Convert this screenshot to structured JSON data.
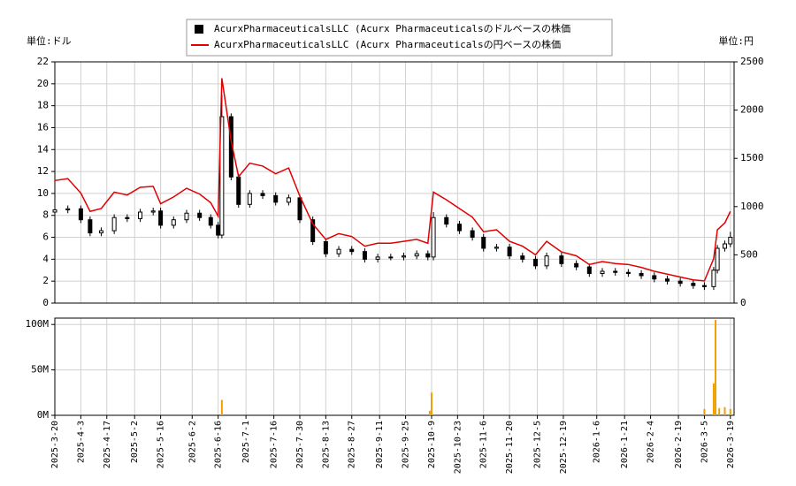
{
  "chart_data": {
    "type": "candlestick",
    "unit_left": "単位:ドル",
    "unit_right": "単位:円",
    "legend": "top",
    "grid": true,
    "x": [
      "2025-3-20",
      "2025-3-27",
      "2025-4-3",
      "2025-4-8",
      "2025-4-14",
      "2025-4-21",
      "2025-4-28",
      "2025-5-5",
      "2025-5-12",
      "2025-5-16",
      "2025-5-23",
      "2025-5-30",
      "2025-6-6",
      "2025-6-12",
      "2025-6-16",
      "2025-6-18",
      "2025-6-23",
      "2025-6-27",
      "2025-7-3",
      "2025-7-10",
      "2025-7-17",
      "2025-7-24",
      "2025-7-30",
      "2025-8-6",
      "2025-8-13",
      "2025-8-20",
      "2025-8-27",
      "2025-9-3",
      "2025-9-10",
      "2025-9-17",
      "2025-9-24",
      "2025-10-1",
      "2025-10-7",
      "2025-10-10",
      "2025-10-17",
      "2025-10-24",
      "2025-10-31",
      "2025-11-6",
      "2025-11-13",
      "2025-11-20",
      "2025-11-27",
      "2025-12-4",
      "2025-12-10",
      "2025-12-18",
      "2025-12-26",
      "2026-1-2",
      "2026-1-9",
      "2026-1-16",
      "2026-1-23",
      "2026-1-30",
      "2026-2-6",
      "2026-2-13",
      "2026-2-20",
      "2026-2-27",
      "2026-3-5",
      "2026-3-10",
      "2026-3-12",
      "2026-3-16",
      "2026-3-19"
    ],
    "xlim": [
      "2025-3-20",
      "2026-3-21"
    ],
    "xticks": [
      "2025-3-20",
      "2025-4-3",
      "2025-4-17",
      "2025-5-2",
      "2025-5-16",
      "2025-6-2",
      "2025-6-16",
      "2025-7-1",
      "2025-7-16",
      "2025-7-30",
      "2025-8-13",
      "2025-8-27",
      "2025-9-11",
      "2025-9-25",
      "2025-10-9",
      "2025-10-23",
      "2025-11-6",
      "2025-11-20",
      "2025-12-5",
      "2025-12-19",
      "2026-1-6",
      "2026-1-21",
      "2026-2-4",
      "2026-2-19",
      "2026-3-5",
      "2026-3-19"
    ],
    "ylim": [
      0,
      22
    ],
    "yticks": [
      0,
      2,
      4,
      6,
      8,
      10,
      12,
      14,
      16,
      18,
      20,
      22
    ],
    "y2lim": [
      0,
      2500
    ],
    "y2ticks": [
      0,
      500,
      1000,
      1500,
      2000,
      2500
    ],
    "series": [
      {
        "name": "AcurxPharmaceuticalsLLC (Acurx Pharmaceuticalsのドルベースの株価",
        "type": "candlestick",
        "color": "#000000",
        "open": [
          8.3,
          8.5,
          8.6,
          7.6,
          6.4,
          6.6,
          7.8,
          7.7,
          8.3,
          8.4,
          7.1,
          7.6,
          8.2,
          7.8,
          7.1,
          6.2,
          17.0,
          11.5,
          9.0,
          10.0,
          9.8,
          9.2,
          9.6,
          7.6,
          5.6,
          4.5,
          4.9,
          4.7,
          4.0,
          4.2,
          4.2,
          4.3,
          4.5,
          4.2,
          7.8,
          7.2,
          6.6,
          6.0,
          5.0,
          5.1,
          4.3,
          4.0,
          3.4,
          4.3,
          3.6,
          3.3,
          2.7,
          2.9,
          2.8,
          2.7,
          2.5,
          2.2,
          2.0,
          1.8,
          1.6,
          1.5,
          3.0,
          5.0,
          5.4
        ],
        "high": [
          8.8,
          8.9,
          8.9,
          7.9,
          6.9,
          8.1,
          8.1,
          8.6,
          8.7,
          8.7,
          7.9,
          8.5,
          8.5,
          8.1,
          7.4,
          19.0,
          17.3,
          11.8,
          10.3,
          10.3,
          10.1,
          9.9,
          9.9,
          7.9,
          5.9,
          5.2,
          5.2,
          5.0,
          4.5,
          4.5,
          4.6,
          4.8,
          4.8,
          8.3,
          8.1,
          7.5,
          6.9,
          6.3,
          5.4,
          5.4,
          4.6,
          4.3,
          4.6,
          4.6,
          3.9,
          3.6,
          3.2,
          3.2,
          3.1,
          3.0,
          2.8,
          2.5,
          2.3,
          2.1,
          1.9,
          3.3,
          5.3,
          5.7,
          6.5
        ],
        "low": [
          8.0,
          8.2,
          7.3,
          6.1,
          6.1,
          6.3,
          7.4,
          7.4,
          8.0,
          6.8,
          6.8,
          7.3,
          7.5,
          6.8,
          5.9,
          5.9,
          11.2,
          8.7,
          8.7,
          9.5,
          8.9,
          8.9,
          7.3,
          5.3,
          4.2,
          4.2,
          4.4,
          3.7,
          3.7,
          3.9,
          3.9,
          4.0,
          3.9,
          3.9,
          6.9,
          6.3,
          5.7,
          4.7,
          4.7,
          4.0,
          3.7,
          3.1,
          3.1,
          3.3,
          3.0,
          2.4,
          2.4,
          2.5,
          2.4,
          2.2,
          1.9,
          1.7,
          1.5,
          1.3,
          1.2,
          1.2,
          2.7,
          4.7,
          5.1
        ],
        "close": [
          8.5,
          8.6,
          7.6,
          6.4,
          6.6,
          7.8,
          7.7,
          8.3,
          8.4,
          7.1,
          7.6,
          8.2,
          7.8,
          7.1,
          6.2,
          17.0,
          11.5,
          9.0,
          10.0,
          9.8,
          9.2,
          9.6,
          7.6,
          5.6,
          4.5,
          4.9,
          4.7,
          4.0,
          4.2,
          4.2,
          4.3,
          4.5,
          4.2,
          7.8,
          7.2,
          6.6,
          6.0,
          5.0,
          5.1,
          4.3,
          4.0,
          3.4,
          4.3,
          3.6,
          3.3,
          2.7,
          2.9,
          2.8,
          2.7,
          2.5,
          2.2,
          2.0,
          1.8,
          1.6,
          1.5,
          3.0,
          5.0,
          5.4,
          6.0
        ]
      },
      {
        "name": "AcurxPharmaceuticalsLLC (Acurx Pharmaceuticalsの円ベースの株価",
        "type": "line",
        "color": "#e00000",
        "axis": "y2",
        "values": [
          1270,
          1290,
          1140,
          950,
          980,
          1150,
          1120,
          1200,
          1210,
          1030,
          1100,
          1190,
          1130,
          1040,
          900,
          2330,
          1680,
          1310,
          1450,
          1420,
          1340,
          1400,
          1110,
          820,
          660,
          720,
          690,
          590,
          620,
          620,
          640,
          660,
          620,
          1150,
          1070,
          980,
          890,
          740,
          760,
          640,
          590,
          500,
          640,
          530,
          490,
          400,
          430,
          410,
          400,
          370,
          330,
          300,
          270,
          240,
          230,
          460,
          760,
          830,
          950
        ]
      }
    ],
    "volume": {
      "type": "bar",
      "color": "#f0a000",
      "x": [
        "2025-6-18",
        "2025-9-25",
        "2025-10-8",
        "2025-10-9",
        "2026-3-5",
        "2026-3-10",
        "2026-3-11",
        "2026-3-13",
        "2026-3-16",
        "2026-3-19"
      ],
      "values": [
        17000000,
        1000000,
        5000000,
        25000000,
        7000000,
        35000000,
        105000000,
        8000000,
        9000000,
        7000000
      ],
      "ylim": [
        0,
        107000000
      ],
      "yticks": [
        {
          "value": 0,
          "label": "0M"
        },
        {
          "value": 50000000,
          "label": "50M"
        },
        {
          "value": 100000000,
          "label": "100M"
        }
      ]
    }
  }
}
